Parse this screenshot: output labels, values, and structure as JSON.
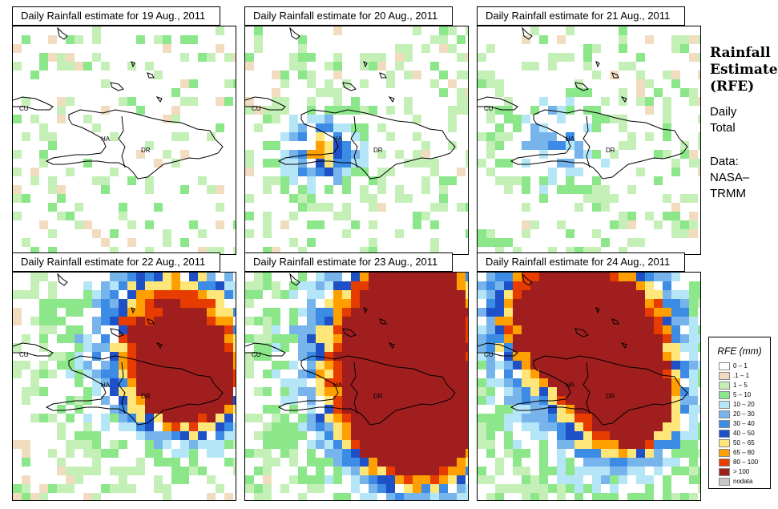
{
  "panels": [
    {
      "title": "Daily Rainfall estimate for  19 Aug., 2011",
      "date": "19 Aug., 2011",
      "intensity": 0
    },
    {
      "title": "Daily Rainfall estimate for  20 Aug., 2011",
      "date": "20 Aug., 2011",
      "intensity": 1
    },
    {
      "title": "Daily Rainfall estimate for  21 Aug., 2011",
      "date": "21 Aug., 2011",
      "intensity": 2
    },
    {
      "title": "Daily Rainfall estimate for  22 Aug., 2011",
      "date": "22 Aug., 2011",
      "intensity": 3
    },
    {
      "title": "Daily Rainfall estimate for  23 Aug., 2011",
      "date": "23 Aug., 2011",
      "intensity": 4
    },
    {
      "title": "Daily Rainfall estimate for  24 Aug., 2011",
      "date": "24 Aug., 2011",
      "intensity": 5
    }
  ],
  "map_labels": {
    "cu": "CU",
    "ha": "HA",
    "dr": "DR"
  },
  "sidebar": {
    "title_line1": "Rainfall",
    "title_line2": "Estimate",
    "title_line3": "(RFE)",
    "sub_line1": "Daily",
    "sub_line2": "Total",
    "data_line1": "Data:",
    "data_line2": "NASA–",
    "data_line3": "TRMM"
  },
  "legend": {
    "title": "RFE (mm)",
    "items": [
      {
        "label": "0 – 1",
        "color": "#ffffff"
      },
      {
        "label": ".1 – 1",
        "color": "#f2dcc0"
      },
      {
        "label": "1 – 5",
        "color": "#c4f0b8"
      },
      {
        "label": "5 – 10",
        "color": "#8ce68a"
      },
      {
        "label": "10 – 20",
        "color": "#b4e6f8"
      },
      {
        "label": "20 – 30",
        "color": "#78b4ec"
      },
      {
        "label": "30 – 40",
        "color": "#3c8ce6"
      },
      {
        "label": "40 – 50",
        "color": "#1e50c8"
      },
      {
        "label": "50 – 65",
        "color": "#ffe678"
      },
      {
        "label": "65 – 80",
        "color": "#ffa000"
      },
      {
        "label": "80 – 100",
        "color": "#e63c00"
      },
      {
        "label": "> 100",
        "color": "#a01e1e"
      },
      {
        "label": "nodata",
        "color": "#c8c8c8"
      }
    ]
  }
}
